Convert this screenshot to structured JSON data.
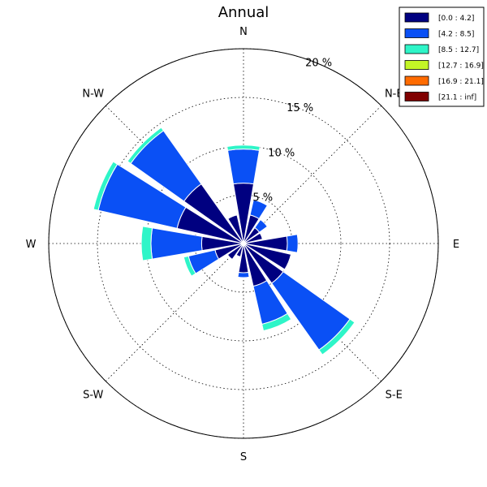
{
  "chart_data": {
    "type": "windrose",
    "title": "Annual",
    "direction_labels": [
      "N",
      "N-E",
      "E",
      "S-E",
      "S",
      "S-W",
      "W",
      "N-W"
    ],
    "radial_ticks": [
      5,
      10,
      15,
      20
    ],
    "radial_tick_labels": [
      "5 %",
      "10 %",
      "15 %",
      "20 %"
    ],
    "r_max": 20,
    "grid": true,
    "legend_position": "top-right",
    "speed_bins": [
      {
        "label": "[0.0 : 4.2]",
        "color": "#000080"
      },
      {
        "label": "[4.2 : 8.5]",
        "color": "#0a50f5"
      },
      {
        "label": "[8.5 : 12.7]",
        "color": "#2ef5c8"
      },
      {
        "label": "[12.7 : 16.9]",
        "color": "#c3f526"
      },
      {
        "label": "[16.9 : 21.1]",
        "color": "#ff6b00"
      },
      {
        "label": "[21.1 : inf]",
        "color": "#800000"
      }
    ],
    "sector_width_deg": 22.5,
    "sectors": [
      {
        "direction_deg": 0,
        "cumulative": [
          6.2,
          9.7,
          10.1,
          10.1,
          10.1,
          10.1
        ]
      },
      {
        "direction_deg": 22.5,
        "cumulative": [
          3.0,
          4.6,
          4.6,
          4.6,
          4.6,
          4.6
        ]
      },
      {
        "direction_deg": 45,
        "cumulative": [
          2.0,
          3.0,
          3.0,
          3.0,
          3.0,
          3.0
        ]
      },
      {
        "direction_deg": 67.5,
        "cumulative": [
          2.0,
          2.0,
          2.0,
          2.0,
          2.0,
          2.0
        ]
      },
      {
        "direction_deg": 90,
        "cumulative": [
          4.5,
          5.6,
          5.6,
          5.6,
          5.6,
          5.6
        ]
      },
      {
        "direction_deg": 112.5,
        "cumulative": [
          5.0,
          5.0,
          5.0,
          5.0,
          5.0,
          5.0
        ]
      },
      {
        "direction_deg": 135,
        "cumulative": [
          5.0,
          13.4,
          14.0,
          14.0,
          14.0,
          14.0
        ]
      },
      {
        "direction_deg": 157.5,
        "cumulative": [
          4.5,
          8.5,
          9.2,
          9.2,
          9.2,
          9.2
        ]
      },
      {
        "direction_deg": 180,
        "cumulative": [
          3.0,
          3.5,
          3.5,
          3.5,
          3.5,
          3.5
        ]
      },
      {
        "direction_deg": 202.5,
        "cumulative": [
          1.4,
          1.4,
          1.4,
          1.4,
          1.4,
          1.4
        ]
      },
      {
        "direction_deg": 225,
        "cumulative": [
          2.0,
          2.0,
          2.0,
          2.0,
          2.0,
          2.0
        ]
      },
      {
        "direction_deg": 247.5,
        "cumulative": [
          3.0,
          5.8,
          6.3,
          6.3,
          6.3,
          6.3
        ]
      },
      {
        "direction_deg": 270,
        "cumulative": [
          4.3,
          9.5,
          10.5,
          10.5,
          10.5,
          10.5
        ]
      },
      {
        "direction_deg": 292.5,
        "cumulative": [
          7.0,
          15.3,
          15.8,
          15.8,
          15.8,
          15.8
        ]
      },
      {
        "direction_deg": 315,
        "cumulative": [
          7.5,
          14.2,
          14.6,
          14.6,
          14.6,
          14.6
        ]
      },
      {
        "direction_deg": 337.5,
        "cumulative": [
          3.0,
          3.0,
          3.0,
          3.0,
          3.0,
          3.0
        ]
      }
    ]
  }
}
